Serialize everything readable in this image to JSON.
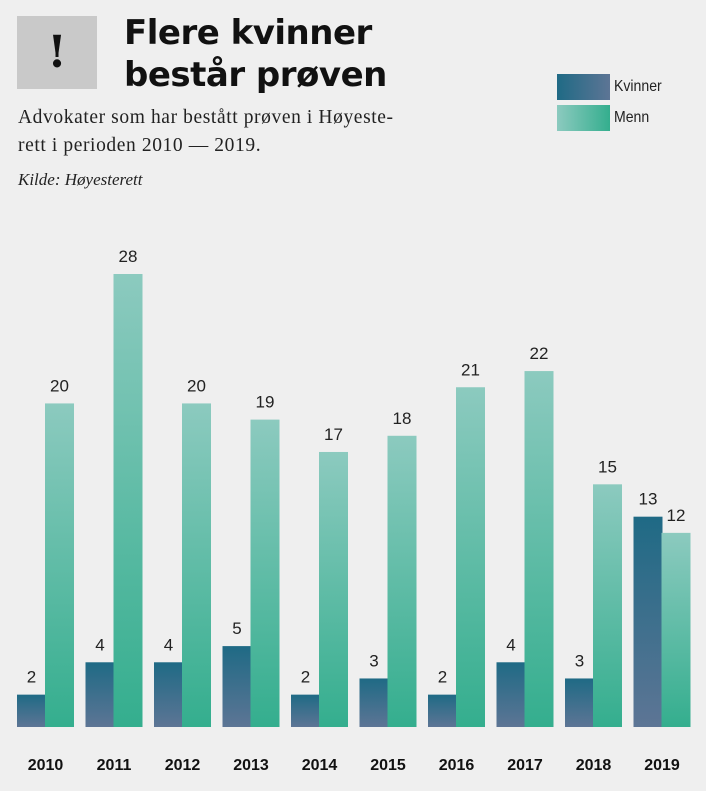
{
  "header": {
    "badge_symbol": "!",
    "title_lines": [
      "Flere kvinner",
      "består prøven"
    ],
    "subtitle_lines": [
      "Advokater som har bestått prøven i Høyeste-",
      "rett i perioden 2010 — 2019."
    ],
    "source": "Kilde: Høyesterett"
  },
  "chart_data": {
    "type": "bar",
    "title": "Flere kvinner består prøven",
    "subtitle": "Advokater som har bestått prøven i Høyesterett i perioden 2010 — 2019.",
    "xlabel": "",
    "ylabel": "",
    "categories": [
      "2010",
      "2011",
      "2012",
      "2013",
      "2014",
      "2015",
      "2016",
      "2017",
      "2018",
      "2019"
    ],
    "series": [
      {
        "name": "Kvinner",
        "values": [
          2,
          4,
          4,
          5,
          2,
          3,
          2,
          4,
          3,
          13
        ],
        "color": "#1f6a85",
        "color_end": "#5d7595"
      },
      {
        "name": "Menn",
        "values": [
          20,
          28,
          20,
          19,
          17,
          18,
          21,
          22,
          15,
          12
        ],
        "color": "#8ccabf",
        "color_end": "#34ae8e"
      }
    ],
    "ylim": [
      0,
      28
    ],
    "grid": false,
    "legend": "top-right",
    "data_labels": true
  }
}
